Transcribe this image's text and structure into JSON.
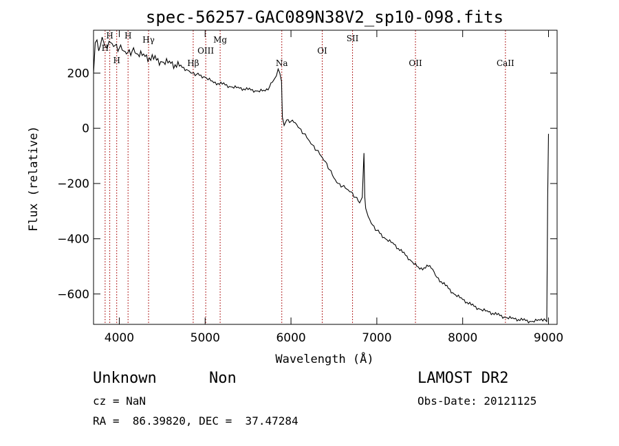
{
  "chart_data": {
    "type": "line",
    "title": "spec-56257-GAC089N38V2_sp10-098.fits",
    "xlabel": "Wavelength (Å)",
    "ylabel": "Flux (relative)",
    "xlim": [
      3700,
      9100
    ],
    "ylim": [
      -710,
      355
    ],
    "x_ticks": [
      4000,
      5000,
      6000,
      7000,
      8000,
      9000
    ],
    "y_ticks": [
      -600,
      -400,
      -200,
      0,
      200
    ],
    "grid": false,
    "line_color": "#000000",
    "marker_color": "#b22222",
    "spectral_lines": [
      {
        "label": "H",
        "x": 3889
      },
      {
        "label": "H",
        "x": 3970
      },
      {
        "label": "H",
        "x": 3835
      },
      {
        "label": "H",
        "x": 4102
      },
      {
        "label": "Hγ",
        "x": 4341
      },
      {
        "label": "Hβ",
        "x": 4861
      },
      {
        "label": "OIII",
        "x": 5007
      },
      {
        "label": "Mg",
        "x": 5175
      },
      {
        "label": "Na",
        "x": 5893
      },
      {
        "label": "OI",
        "x": 6364
      },
      {
        "label": "SII",
        "x": 6717
      },
      {
        "label": "OII",
        "x": 7450
      },
      {
        "label": "CaII",
        "x": 8498
      }
    ],
    "series": [
      {
        "x": [
          3700,
          3720,
          3740,
          3760,
          3780,
          3800,
          3830,
          3860,
          3900,
          3950,
          4000,
          4050,
          4100,
          4150,
          4200,
          4300,
          4400,
          4500,
          4600,
          4700,
          4800,
          4850,
          4900,
          5000,
          5100,
          5200,
          5300,
          5400,
          5500,
          5600,
          5700,
          5750,
          5800,
          5830,
          5850,
          5870,
          5890,
          5900,
          5920,
          5950,
          6000,
          6050,
          6100,
          6150,
          6200,
          6250,
          6300,
          6350,
          6400,
          6450,
          6500,
          6550,
          6600,
          6650,
          6700,
          6750,
          6800,
          6830,
          6850,
          6860,
          6870,
          6880,
          6900,
          6950,
          7000,
          7100,
          7200,
          7300,
          7400,
          7500,
          7600,
          7650,
          7700,
          7800,
          7900,
          8000,
          8100,
          8200,
          8300,
          8400,
          8500,
          8600,
          8700,
          8800,
          8900,
          8950,
          8980,
          8990,
          9000
        ],
        "y": [
          200,
          310,
          320,
          280,
          300,
          330,
          300,
          290,
          310,
          300,
          290,
          280,
          275,
          280,
          270,
          260,
          250,
          240,
          235,
          225,
          210,
          200,
          195,
          185,
          165,
          160,
          150,
          145,
          140,
          135,
          135,
          150,
          175,
          190,
          215,
          200,
          170,
          40,
          10,
          30,
          25,
          20,
          0,
          -20,
          -40,
          -60,
          -80,
          -100,
          -120,
          -150,
          -180,
          -200,
          -210,
          -220,
          -230,
          -250,
          -270,
          -250,
          -90,
          -250,
          -290,
          -300,
          -320,
          -350,
          -370,
          -400,
          -420,
          -450,
          -480,
          -510,
          -500,
          -510,
          -540,
          -570,
          -600,
          -620,
          -640,
          -655,
          -665,
          -675,
          -685,
          -690,
          -695,
          -700,
          -695,
          -690,
          -700,
          -250,
          -20
        ]
      }
    ]
  },
  "footer": {
    "object_class": "Unknown",
    "object_subclass": "Non",
    "survey": "LAMOST DR2",
    "redshift": "cz = NaN",
    "obs_date": "Obs-Date: 20121125",
    "coords": "RA =  86.39820, DEC =  37.47284"
  }
}
